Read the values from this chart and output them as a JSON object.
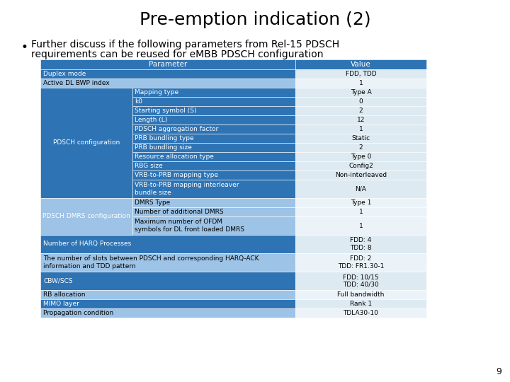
{
  "title": "Pre-emption indication (2)",
  "bullet_line1": "Further discuss if the following parameters from Rel-15 PDSCH",
  "bullet_line2": "requirements can be reused for eMBB PDSCH configuration",
  "header": [
    "Parameter",
    "Value"
  ],
  "header_bg": "#2E74B5",
  "rows": [
    {
      "c1": "Duplex mode",
      "c2": "",
      "c3": "FDD, TDD",
      "type": "span_dark"
    },
    {
      "c1": "Active DL BWP index",
      "c2": "",
      "c3": "1",
      "type": "span_light"
    },
    {
      "c1": "PDSCH configuration",
      "c2": "Mapping type",
      "c3": "Type A",
      "type": "sub_dark"
    },
    {
      "c1": "",
      "c2": "k0",
      "c3": "0",
      "type": "sub_dark"
    },
    {
      "c1": "",
      "c2": "Starting symbol (S)",
      "c3": "2",
      "type": "sub_dark"
    },
    {
      "c1": "",
      "c2": "Length (L)",
      "c3": "12",
      "type": "sub_dark"
    },
    {
      "c1": "",
      "c2": "PDSCH aggregation factor",
      "c3": "1",
      "type": "sub_dark"
    },
    {
      "c1": "",
      "c2": "PRB bundling type",
      "c3": "Static",
      "type": "sub_dark"
    },
    {
      "c1": "",
      "c2": "PRB bundling size",
      "c3": "2",
      "type": "sub_dark"
    },
    {
      "c1": "",
      "c2": "Resource allocation type",
      "c3": "Type 0",
      "type": "sub_dark"
    },
    {
      "c1": "",
      "c2": "RBG size",
      "c3": "Config2",
      "type": "sub_dark"
    },
    {
      "c1": "",
      "c2": "VRB-to-PRB mapping type",
      "c3": "Non-interleaved",
      "type": "sub_dark"
    },
    {
      "c1": "",
      "c2": "VRB-to-PRB mapping interleaver\nbundle size",
      "c3": "N/A",
      "type": "sub_dark_tall"
    },
    {
      "c1": "PDSCH DMRS configuration",
      "c2": "DMRS Type",
      "c3": "Type 1",
      "type": "sub_light"
    },
    {
      "c1": "",
      "c2": "Number of additional DMRS",
      "c3": "1",
      "type": "sub_light"
    },
    {
      "c1": "",
      "c2": "Maximum number of OFDM\nsymbols for DL front loaded DMRS",
      "c3": "1",
      "type": "sub_light_tall"
    },
    {
      "c1": "Number of HARQ Processes",
      "c2": "",
      "c3": "FDD: 4\nTDD: 8",
      "type": "span_dark_tall"
    },
    {
      "c1": "The number of slots between PDSCH and corresponding HARQ-ACK\ninformation and TDD pattern",
      "c2": "",
      "c3": "FDD: 2\nTDD: FR1.30-1",
      "type": "span_light_tall"
    },
    {
      "c1": "CBW/SCS",
      "c2": "",
      "c3": "FDD: 10/15\nTDD: 40/30",
      "type": "span_dark_tall"
    },
    {
      "c1": "RB allocation",
      "c2": "",
      "c3": "Full bandwidth",
      "type": "span_light"
    },
    {
      "c1": "MIMO layer",
      "c2": "",
      "c3": "Rank 1",
      "type": "span_dark"
    },
    {
      "c1": "Propagation condition",
      "c2": "",
      "c3": "TDLA30-10",
      "type": "span_light"
    }
  ],
  "pdsch_config_rows": [
    2,
    12
  ],
  "pdsch_dmrs_rows": [
    13,
    15
  ],
  "page_num": "9",
  "colors": {
    "dark_bg": "#2E74B5",
    "light_bg": "#9DC3E6",
    "dark_right": "#DEEAF1",
    "light_right": "#EBF3F9",
    "span_dark_bg": "#2E74B5",
    "span_light_bg": "#9DC3E6",
    "white": "#FFFFFF",
    "black": "#000000"
  }
}
